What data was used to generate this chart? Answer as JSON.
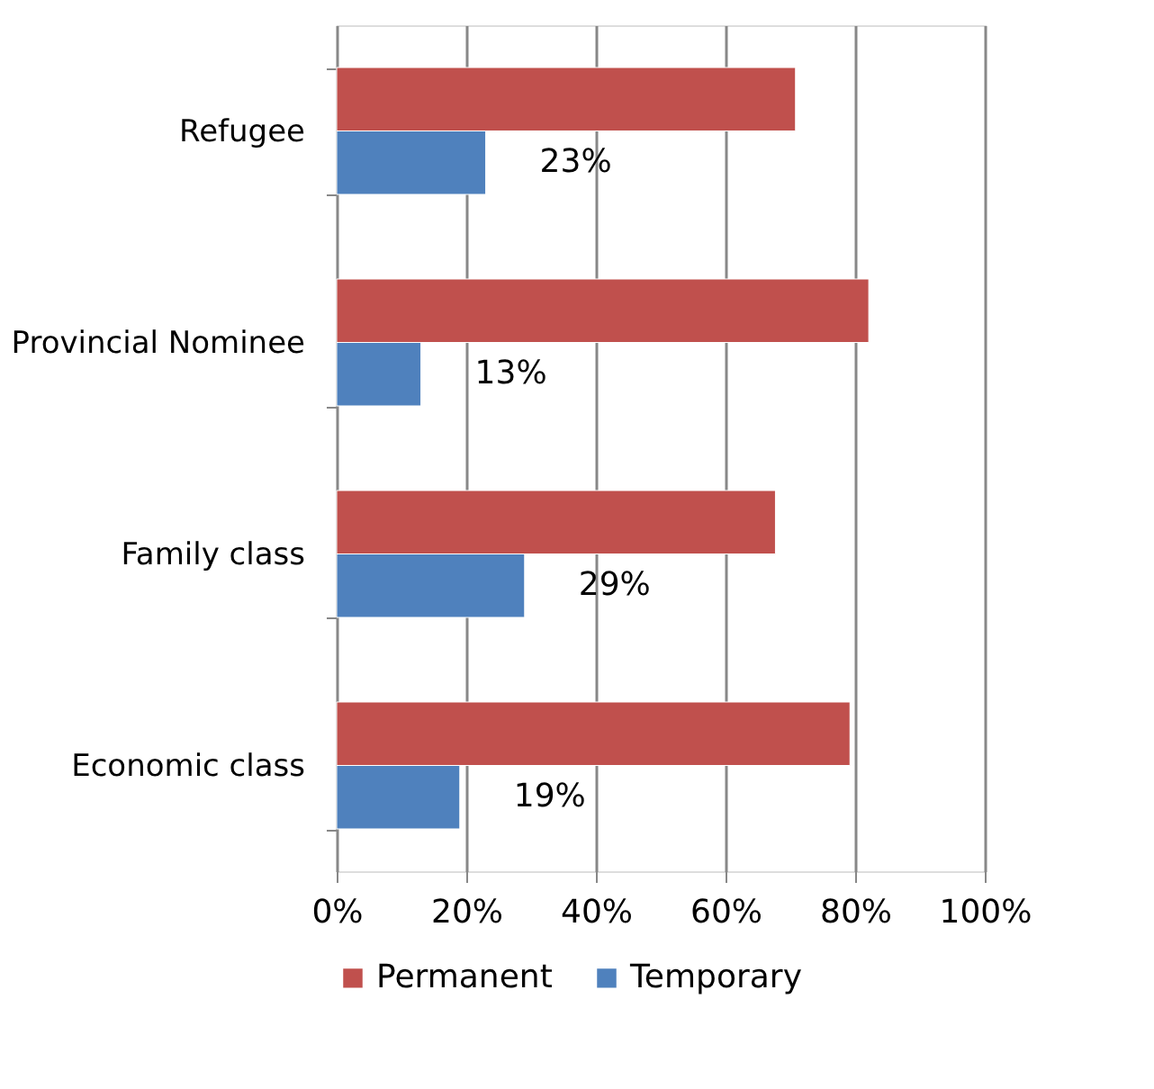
{
  "chart_data": {
    "type": "bar",
    "orientation": "horizontal",
    "categories": [
      "Refugee",
      "Provincial Nominee",
      "Family class",
      "Economic class"
    ],
    "series": [
      {
        "name": "Permanent",
        "color": "#c0504d",
        "values": [
          70.8,
          82.1,
          67.7,
          79.2
        ]
      },
      {
        "name": "Temporary",
        "color": "#4f81bd",
        "values": [
          23,
          13,
          29,
          19
        ],
        "value_labels": [
          "23%",
          "13%",
          "29%",
          "19%"
        ]
      }
    ],
    "xlim": [
      0,
      100
    ],
    "xticks": [
      {
        "value": 0,
        "label": "0%"
      },
      {
        "value": 20,
        "label": "20%"
      },
      {
        "value": 40,
        "label": "40%"
      },
      {
        "value": 60,
        "label": "60%"
      },
      {
        "value": 80,
        "label": "80%"
      },
      {
        "value": 100,
        "label": "100%"
      }
    ],
    "grid": "x",
    "legend": "bottom"
  }
}
